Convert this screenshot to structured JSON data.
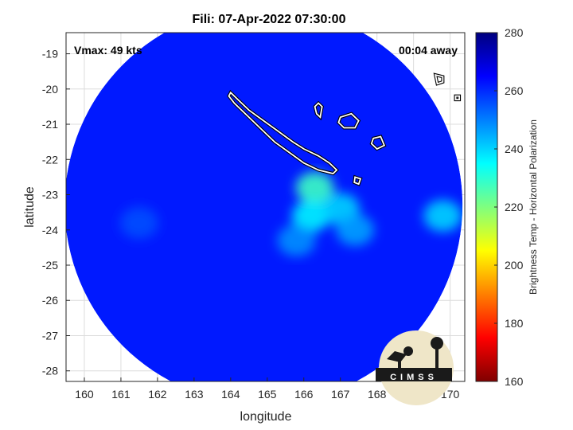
{
  "chart_data": {
    "type": "heatmap",
    "title": "Fili: 07-Apr-2022 07:30:00",
    "xlabel": "longitude",
    "ylabel": "latitude",
    "xlim": [
      159.5,
      170.4
    ],
    "ylim": [
      -28.3,
      -18.4
    ],
    "x_ticks": [
      160,
      161,
      162,
      163,
      164,
      165,
      166,
      167,
      168,
      169,
      170
    ],
    "y_ticks": [
      -19,
      -20,
      -21,
      -22,
      -23,
      -24,
      -25,
      -26,
      -27,
      -28
    ],
    "x_tick_labels": [
      "160",
      "161",
      "162",
      "163",
      "164",
      "165",
      "166",
      "167",
      "168",
      "169",
      "170"
    ],
    "y_tick_labels": [
      "-19",
      "-20",
      "-21",
      "-22",
      "-23",
      "-24",
      "-25",
      "-26",
      "-27",
      "-28"
    ],
    "grid": true,
    "annotations": {
      "vmax": "Vmax: 49 kts",
      "time_offset": "00:04 away"
    },
    "colorbar": {
      "label": "Brightness Temp - Horizontal Polarization",
      "min": 160,
      "max": 280,
      "ticks": [
        160,
        180,
        200,
        220,
        240,
        260,
        280
      ],
      "tick_labels": [
        "160",
        "180",
        "200",
        "220",
        "240",
        "260",
        "280"
      ],
      "colormap": [
        "#7f0000",
        "#ff0000",
        "#ff7f00",
        "#ffff00",
        "#7fff7f",
        "#00ffff",
        "#007fff",
        "#0000ff",
        "#00007f"
      ]
    },
    "swath": {
      "center_lon": 164.9,
      "center_lat": -23.3,
      "background_value": 262
    },
    "features": [
      {
        "name": "core",
        "lon": 166.3,
        "lat": -22.8,
        "value": 228
      },
      {
        "name": "band-south",
        "lon": 166.2,
        "lat": -23.6,
        "value": 236
      },
      {
        "name": "band-east",
        "lon": 167.0,
        "lat": -23.4,
        "value": 240
      },
      {
        "name": "band-southeast",
        "lon": 167.4,
        "lat": -24.0,
        "value": 246
      },
      {
        "name": "edge-east",
        "lon": 169.8,
        "lat": -23.6,
        "value": 240
      },
      {
        "name": "mid",
        "lon": 165.8,
        "lat": -24.3,
        "value": 248
      },
      {
        "name": "cold-west",
        "lon": 161.5,
        "lat": -23.8,
        "value": 256
      }
    ],
    "coastlines": [
      {
        "name": "new-caledonia",
        "points": [
          [
            164.0,
            -20.1
          ],
          [
            164.2,
            -20.3
          ],
          [
            164.5,
            -20.6
          ],
          [
            164.9,
            -20.9
          ],
          [
            165.3,
            -21.2
          ],
          [
            165.7,
            -21.5
          ],
          [
            166.0,
            -21.7
          ],
          [
            166.4,
            -21.9
          ],
          [
            166.7,
            -22.1
          ],
          [
            166.9,
            -22.3
          ],
          [
            166.8,
            -22.4
          ],
          [
            166.4,
            -22.3
          ],
          [
            166.0,
            -22.1
          ],
          [
            165.6,
            -21.8
          ],
          [
            165.2,
            -21.5
          ],
          [
            164.8,
            -21.1
          ],
          [
            164.4,
            -20.7
          ],
          [
            164.1,
            -20.4
          ],
          [
            163.95,
            -20.2
          ]
        ]
      },
      {
        "name": "ouvea",
        "points": [
          [
            166.3,
            -20.5
          ],
          [
            166.4,
            -20.4
          ],
          [
            166.5,
            -20.5
          ],
          [
            166.45,
            -20.8
          ],
          [
            166.35,
            -20.7
          ]
        ]
      },
      {
        "name": "lifou",
        "points": [
          [
            167.0,
            -20.8
          ],
          [
            167.3,
            -20.7
          ],
          [
            167.5,
            -20.9
          ],
          [
            167.4,
            -21.1
          ],
          [
            167.1,
            -21.1
          ],
          [
            166.95,
            -20.95
          ]
        ]
      },
      {
        "name": "mare",
        "points": [
          [
            167.9,
            -21.4
          ],
          [
            168.1,
            -21.35
          ],
          [
            168.2,
            -21.6
          ],
          [
            168.0,
            -21.7
          ],
          [
            167.85,
            -21.55
          ]
        ]
      },
      {
        "name": "isle-of-pines",
        "points": [
          [
            167.4,
            -22.5
          ],
          [
            167.55,
            -22.55
          ],
          [
            167.5,
            -22.7
          ],
          [
            167.38,
            -22.65
          ]
        ]
      },
      {
        "name": "aneityum",
        "points": [
          [
            169.6,
            -19.6
          ],
          [
            169.8,
            -19.65
          ],
          [
            169.8,
            -19.8
          ],
          [
            169.65,
            -19.85
          ]
        ]
      },
      {
        "name": "futuna",
        "points": [
          [
            170.15,
            -20.2
          ],
          [
            170.25,
            -20.2
          ],
          [
            170.25,
            -20.3
          ],
          [
            170.15,
            -20.3
          ]
        ]
      }
    ]
  },
  "logo": {
    "text": "CIMSS"
  }
}
